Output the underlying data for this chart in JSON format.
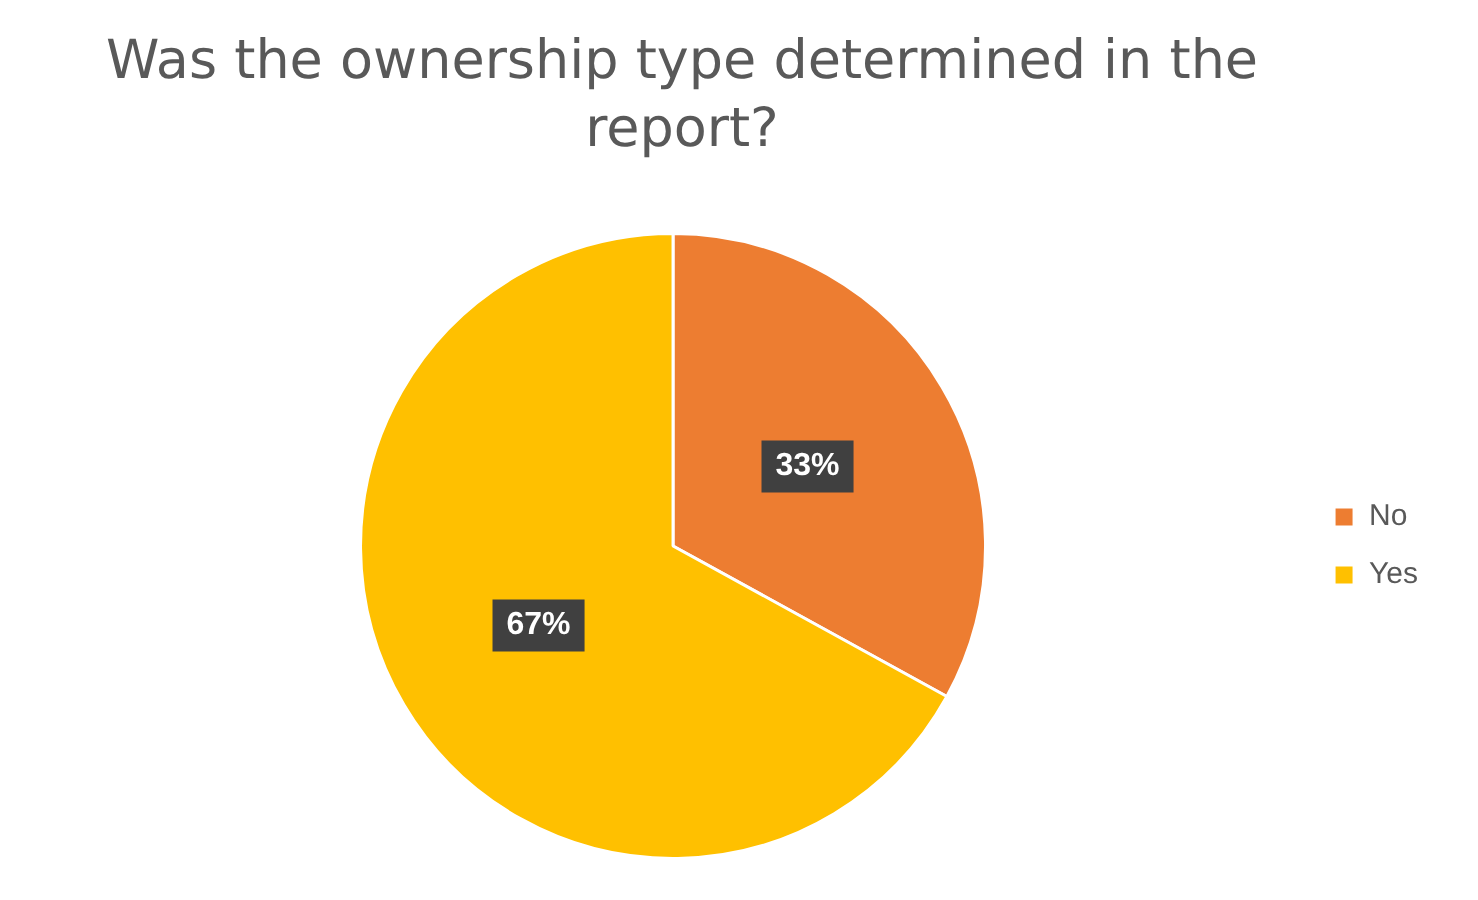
{
  "chart_data": {
    "type": "pie",
    "title": "Was the ownership type determined in the report?",
    "categories": [
      "No",
      "Yes"
    ],
    "values": [
      33,
      67
    ],
    "colors": [
      "#ed7d31",
      "#ffc000"
    ],
    "value_labels": [
      "33%",
      "67%"
    ],
    "legend": "right"
  }
}
